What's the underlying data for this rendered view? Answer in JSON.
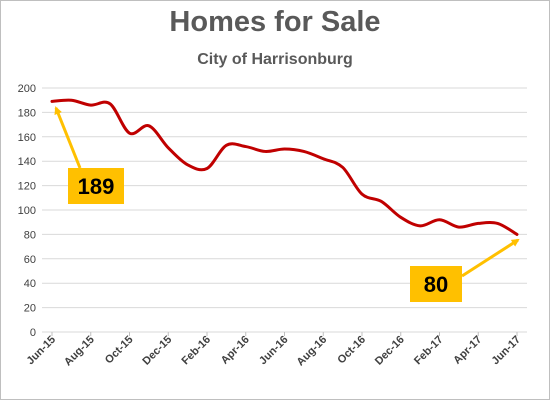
{
  "chart_data": {
    "type": "line",
    "title": "Homes for Sale",
    "subtitle": "City of Harrisonburg",
    "xlabel": "",
    "ylabel": "",
    "ylim": [
      0,
      200
    ],
    "yticks": [
      0,
      20,
      40,
      60,
      80,
      100,
      120,
      140,
      160,
      180,
      200
    ],
    "x_tick_labels": [
      "Jun-15",
      "Aug-15",
      "Oct-15",
      "Dec-15",
      "Feb-16",
      "Apr-16",
      "Jun-16",
      "Aug-16",
      "Oct-16",
      "Dec-16",
      "Feb-17",
      "Apr-17",
      "Jun-17"
    ],
    "grid": "horizontal",
    "line_color": "#c00000",
    "series": [
      {
        "x": [
          "Jun-15",
          "Jul-15",
          "Aug-15",
          "Sep-15",
          "Oct-15",
          "Nov-15",
          "Dec-15",
          "Jan-16",
          "Feb-16",
          "Mar-16",
          "Apr-16",
          "May-16",
          "Jun-16",
          "Jul-16",
          "Aug-16",
          "Sep-16",
          "Oct-16",
          "Nov-16",
          "Dec-16",
          "Jan-17",
          "Feb-17",
          "Mar-17",
          "Apr-17",
          "May-17",
          "Jun-17"
        ],
        "values": [
          189,
          190,
          186,
          187,
          163,
          169,
          151,
          137,
          134,
          153,
          152,
          148,
          150,
          148,
          142,
          135,
          113,
          107,
          94,
          87,
          92,
          86,
          89,
          89,
          80
        ]
      }
    ],
    "annotations": [
      {
        "label": "189",
        "points_to": "Jun-15",
        "value": 189,
        "box_color": "#ffc000",
        "arrow_color": "#ffc000"
      },
      {
        "label": "80",
        "points_to": "Jun-17",
        "value": 80,
        "box_color": "#ffc000",
        "arrow_color": "#ffc000"
      }
    ]
  }
}
